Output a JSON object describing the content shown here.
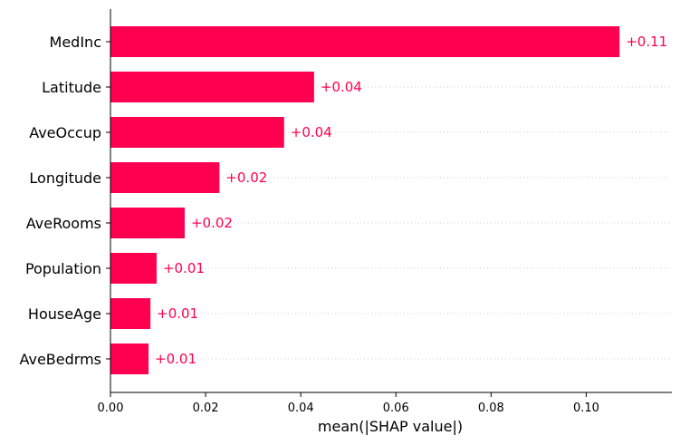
{
  "chart_data": {
    "type": "bar",
    "orientation": "horizontal",
    "categories": [
      "MedInc",
      "Latitude",
      "AveOccup",
      "Longitude",
      "AveRooms",
      "Population",
      "HouseAge",
      "AveBedrms"
    ],
    "values": [
      0.107,
      0.0428,
      0.0365,
      0.0229,
      0.0156,
      0.0097,
      0.0084,
      0.008
    ],
    "value_labels": [
      "+0.11",
      "+0.04",
      "+0.04",
      "+0.02",
      "+0.02",
      "+0.01",
      "+0.01",
      "+0.01"
    ],
    "xlabel": "mean(|SHAP value|)",
    "xlim": [
      0,
      0.118
    ],
    "xticks": [
      0.0,
      0.02,
      0.04,
      0.06,
      0.08,
      0.1
    ],
    "xtick_labels": [
      "0.00",
      "0.02",
      "0.04",
      "0.06",
      "0.08",
      "0.10"
    ],
    "grid": "dotted horizontal",
    "legend": "none",
    "bar_color": "#ff0051"
  }
}
